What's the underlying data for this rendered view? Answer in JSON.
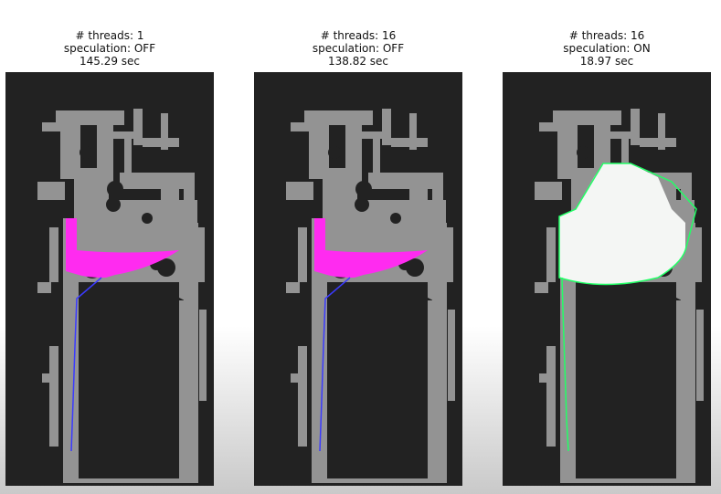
{
  "panels": [
    {
      "threads_text": "# threads: 1",
      "speculation_text": "speculation: OFF",
      "time_text": "145.29 sec",
      "variant": "magenta"
    },
    {
      "threads_text": "# threads: 16",
      "speculation_text": "speculation: OFF",
      "time_text": "138.82 sec",
      "variant": "magenta"
    },
    {
      "threads_text": "# threads: 16",
      "speculation_text": "speculation: ON",
      "time_text": "18.97 sec",
      "variant": "white"
    }
  ],
  "colors": {
    "background": "#ffffff",
    "map_dark": "#222222",
    "map_free": "#939393",
    "explored_magenta": "#ff2bf0",
    "explored_white": "#f4f6f4",
    "path_blue": "#3a3aff",
    "path_green": "#22ff66"
  }
}
